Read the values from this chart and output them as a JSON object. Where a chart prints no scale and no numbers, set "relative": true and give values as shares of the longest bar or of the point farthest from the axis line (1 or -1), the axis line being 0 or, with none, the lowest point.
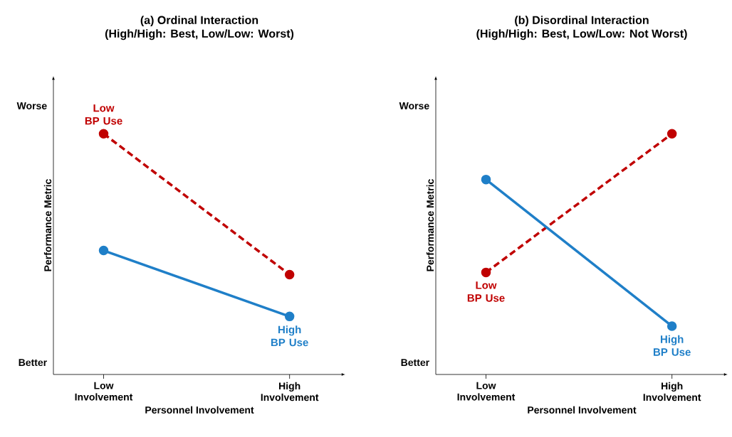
{
  "chart_data": [
    {
      "type": "line",
      "title": "(a) Ordinal Interaction",
      "subtitle": "(High/High: Best, Low/Low: Worst)",
      "xlabel": "Personnel Involvement",
      "ylabel": "Performance Metric",
      "annotations": [
        "Worse",
        "Better"
      ],
      "categories": [
        "Low Involvement",
        "High Involvement"
      ],
      "relative": true,
      "marker": "circle",
      "legend": false,
      "grid": false,
      "series": [
        {
          "name": "Low BP Use",
          "color": "#c00000",
          "line_style": "dashed",
          "values": [
            1,
            0.415
          ]
        },
        {
          "name": "High BP Use",
          "color": "#1f7fc8",
          "line_style": "solid",
          "values": [
            0.515,
            0.241
          ]
        }
      ]
    },
    {
      "type": "line",
      "title": "(b) Disordinal Interaction",
      "subtitle": "(High/High: Best, Low/Low: Not Worst)",
      "xlabel": "Personnel Involvement",
      "ylabel": "Performance Metric",
      "annotations": [
        "Worse",
        "Better"
      ],
      "categories": [
        "Low Involvement",
        "High Involvement"
      ],
      "relative": true,
      "marker": "circle",
      "legend": false,
      "grid": false,
      "series": [
        {
          "name": "Low BP Use",
          "color": "#c00000",
          "line_style": "dashed",
          "values": [
            0.424,
            1
          ]
        },
        {
          "name": "High BP Use",
          "color": "#1f7fc8",
          "line_style": "solid",
          "values": [
            0.81,
            0.201
          ]
        }
      ]
    }
  ]
}
